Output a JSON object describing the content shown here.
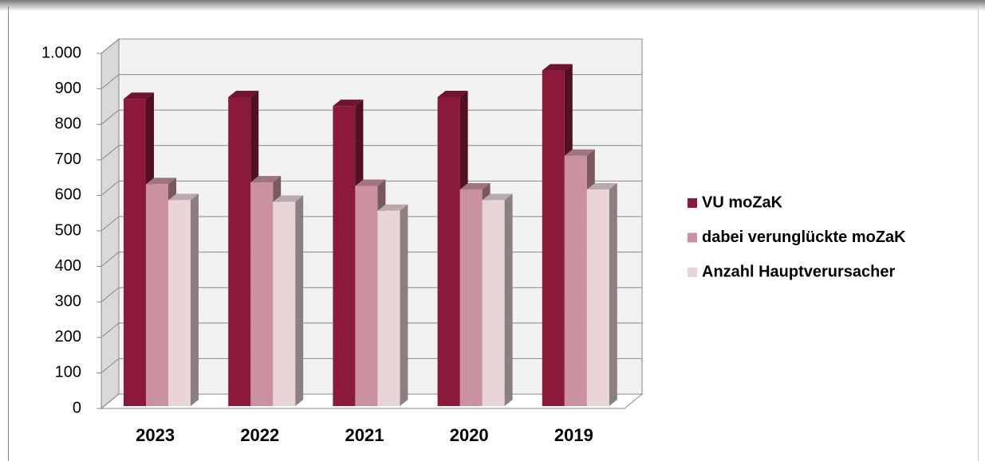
{
  "chart_data": {
    "type": "bar3d",
    "categories": [
      "2023",
      "2022",
      "2021",
      "2020",
      "2019"
    ],
    "series": [
      {
        "name": "VU moZaK",
        "color": "#8b1a3a",
        "values": [
          865,
          870,
          845,
          870,
          945
        ]
      },
      {
        "name": "dabei verunglückte moZaK",
        "color": "#c9929e",
        "values": [
          625,
          630,
          620,
          610,
          705
        ]
      },
      {
        "name": "Anzahl Hauptverursacher",
        "color": "#e9d4d8",
        "values": [
          580,
          575,
          550,
          580,
          610
        ]
      }
    ],
    "ylim": [
      0,
      1000
    ],
    "yticks": [
      0,
      100,
      200,
      300,
      400,
      500,
      600,
      700,
      800,
      900,
      {
        "value": 1000,
        "label": "1.000"
      }
    ],
    "grid": true,
    "legend": "right"
  }
}
